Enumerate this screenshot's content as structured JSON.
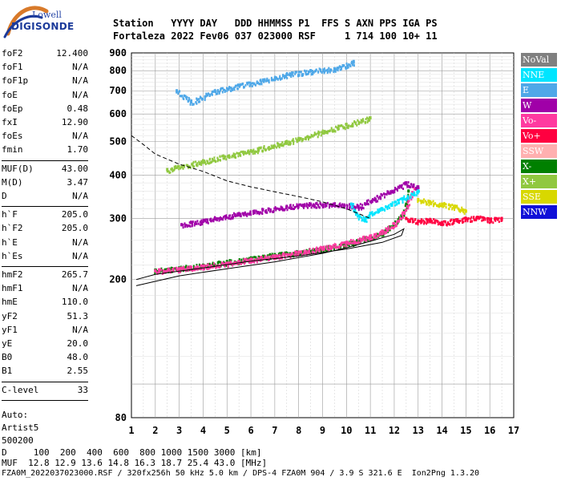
{
  "logo": {
    "brand_top": "Lowell",
    "brand_main": "DIGISONDE"
  },
  "header": {
    "line1": "Station   YYYY DAY   DDD HHMMSS P1  FFS S AXN PPS IGA PS",
    "line2": "Fortaleza 2022 Fev06 037 023000 RSF     1 714 100 10+ 11"
  },
  "panel": {
    "group1": [
      {
        "name": "foF2",
        "value": "12.400"
      },
      {
        "name": "foF1",
        "value": "N/A"
      },
      {
        "name": "foF1p",
        "value": "N/A"
      },
      {
        "name": "foE",
        "value": "N/A"
      },
      {
        "name": "foEp",
        "value": "0.48"
      },
      {
        "name": "fxI",
        "value": "12.90"
      },
      {
        "name": "foEs",
        "value": "N/A"
      },
      {
        "name": "fmin",
        "value": "1.70"
      }
    ],
    "group2": [
      {
        "name": "MUF(D)",
        "value": "43.00"
      },
      {
        "name": "M(D)",
        "value": "3.47"
      },
      {
        "name": "D",
        "value": "N/A"
      }
    ],
    "group3": [
      {
        "name": "h`F",
        "value": "205.0"
      },
      {
        "name": "h`F2",
        "value": "205.0"
      },
      {
        "name": "h`E",
        "value": "N/A"
      },
      {
        "name": "h`Es",
        "value": "N/A"
      }
    ],
    "group4": [
      {
        "name": "hmF2",
        "value": "265.7"
      },
      {
        "name": "hmF1",
        "value": "N/A"
      },
      {
        "name": "hmE",
        "value": "110.0"
      },
      {
        "name": "yF2",
        "value": "51.3"
      },
      {
        "name": "yF1",
        "value": "N/A"
      },
      {
        "name": "yE",
        "value": "20.0"
      },
      {
        "name": "B0",
        "value": "48.0"
      },
      {
        "name": "B1",
        "value": "2.55"
      }
    ],
    "group5": [
      {
        "name": "C-level",
        "value": "33"
      }
    ],
    "auto_label": "Auto:",
    "auto_name": "Artist5",
    "auto_id": "500200"
  },
  "legend": [
    {
      "label": "NoVal",
      "color": "#808080"
    },
    {
      "label": "NNE",
      "color": "#00e5ff"
    },
    {
      "label": "E",
      "color": "#4fa8e8"
    },
    {
      "label": "W",
      "color": "#a000a8"
    },
    {
      "label": "Vo-",
      "color": "#ff3aa0"
    },
    {
      "label": "Vo+",
      "color": "#ff0040"
    },
    {
      "label": "SSW",
      "color": "#ffb0b0"
    },
    {
      "label": "X-",
      "color": "#008000"
    },
    {
      "label": "X+",
      "color": "#90c840"
    },
    {
      "label": "SSE",
      "color": "#d8d800"
    },
    {
      "label": "NNW",
      "color": "#1010d8"
    }
  ],
  "chart_data": {
    "type": "scatter",
    "title": "",
    "xlabel": "",
    "ylabel": "",
    "xlim": [
      1,
      17
    ],
    "x_ticks": [
      "1",
      "2",
      "3",
      "4",
      "5",
      "6",
      "7",
      "8",
      "9",
      "10",
      "11",
      "12",
      "13",
      "14",
      "15",
      "16",
      "17"
    ],
    "y_ticks": [
      "80",
      "200",
      "300",
      "400",
      "500",
      "600",
      "700",
      "800",
      "900"
    ],
    "y_scale": "log",
    "ylim": [
      80,
      900
    ],
    "grid": true,
    "series": [
      {
        "name": "X-",
        "color": "#008000",
        "points": [
          [
            2,
            213
          ],
          [
            3,
            216
          ],
          [
            4,
            220
          ],
          [
            5,
            225
          ],
          [
            6,
            230
          ],
          [
            7,
            236
          ],
          [
            8,
            240
          ],
          [
            9,
            246
          ],
          [
            10,
            254
          ],
          [
            11,
            265
          ],
          [
            11.5,
            274
          ],
          [
            12,
            290
          ],
          [
            12.3,
            305
          ],
          [
            12.5,
            330
          ],
          [
            12.6,
            360
          ]
        ]
      },
      {
        "name": "Vo-",
        "color": "#ff3aa0",
        "points": [
          [
            2,
            212
          ],
          [
            3,
            215
          ],
          [
            4,
            219
          ],
          [
            5,
            223
          ],
          [
            6,
            229
          ],
          [
            7,
            234
          ],
          [
            8,
            240
          ],
          [
            9,
            247
          ],
          [
            10,
            256
          ],
          [
            11,
            267
          ],
          [
            11.5,
            276
          ],
          [
            12,
            290
          ],
          [
            12.4,
            312
          ],
          [
            12.6,
            340
          ],
          [
            12.8,
            370
          ]
        ]
      },
      {
        "name": "Vo+",
        "color": "#ff0040",
        "points": [
          [
            12.5,
            300
          ],
          [
            13,
            295
          ],
          [
            13.5,
            298
          ],
          [
            14,
            292
          ],
          [
            14.5,
            296
          ],
          [
            15,
            300
          ],
          [
            15.5,
            302
          ],
          [
            16,
            298
          ],
          [
            16.5,
            300
          ]
        ]
      },
      {
        "name": "W",
        "color": "#a000a8",
        "points": [
          [
            3.1,
            288
          ],
          [
            3.5,
            292
          ],
          [
            4.5,
            300
          ],
          [
            5.5,
            310
          ],
          [
            6.5,
            318
          ],
          [
            7.5,
            325
          ],
          [
            8.5,
            330
          ],
          [
            9.5,
            330
          ],
          [
            10.5,
            325
          ],
          [
            12.5,
            380
          ],
          [
            13,
            370
          ]
        ]
      },
      {
        "name": "E",
        "color": "#4fa8e8",
        "points": [
          [
            2.9,
            700
          ],
          [
            3.5,
            650
          ],
          [
            4.5,
            700
          ],
          [
            5.5,
            725
          ],
          [
            6.5,
            750
          ],
          [
            7.5,
            780
          ],
          [
            8.5,
            800
          ],
          [
            9.5,
            810
          ],
          [
            10.3,
            850
          ]
        ]
      },
      {
        "name": "SSE",
        "color": "#d8d800",
        "points": [
          [
            13,
            340
          ],
          [
            13.5,
            335
          ],
          [
            14,
            330
          ],
          [
            14.5,
            325
          ],
          [
            15,
            315
          ]
        ]
      },
      {
        "name": "NNE",
        "color": "#00e5ff",
        "points": [
          [
            10.2,
            330
          ],
          [
            10.5,
            305
          ],
          [
            10.8,
            300
          ],
          [
            11,
            310
          ],
          [
            13,
            360
          ]
        ]
      },
      {
        "name": "X+",
        "color": "#90c840",
        "points": [
          [
            2.5,
            415
          ],
          [
            4,
            440
          ],
          [
            6,
            470
          ],
          [
            8,
            510
          ],
          [
            10,
            560
          ],
          [
            11,
            585
          ]
        ]
      }
    ],
    "curves": [
      {
        "name": "profile",
        "color": "#000000",
        "points": [
          [
            1.2,
            192
          ],
          [
            3,
            205
          ],
          [
            5,
            215
          ],
          [
            7,
            225
          ],
          [
            9,
            238
          ],
          [
            10,
            247
          ],
          [
            11,
            258
          ],
          [
            12,
            270
          ],
          [
            12.4,
            280
          ],
          [
            12.3,
            268
          ],
          [
            11.5,
            256
          ],
          [
            10,
            245
          ],
          [
            8,
            234
          ],
          [
            6,
            226
          ],
          [
            4,
            216
          ],
          [
            2,
            207
          ],
          [
            1.2,
            200
          ]
        ]
      },
      {
        "name": "muf_curve",
        "color": "#000000",
        "dashed": true,
        "points": [
          [
            1,
            520
          ],
          [
            1.5,
            490
          ],
          [
            2,
            460
          ],
          [
            3,
            430
          ],
          [
            4,
            410
          ],
          [
            5,
            385
          ],
          [
            6,
            370
          ],
          [
            7,
            358
          ],
          [
            8,
            347
          ],
          [
            9,
            335
          ],
          [
            10,
            320
          ],
          [
            11,
            300
          ]
        ]
      }
    ]
  },
  "footer": {
    "line1": "D     100  200  400  600  800 1000 1500 3000 [km]",
    "line2": "MUF  12.8 12.9 13.6 14.8 16.3 18.7 25.4 43.0 [MHz]",
    "line3": "FZA0M_2022037023000.RSF / 320fx256h 50 kHz 5.0 km / DPS-4 FZA0M 904 / 3.9 S 321.6 E  Ion2Png 1.3.20"
  }
}
